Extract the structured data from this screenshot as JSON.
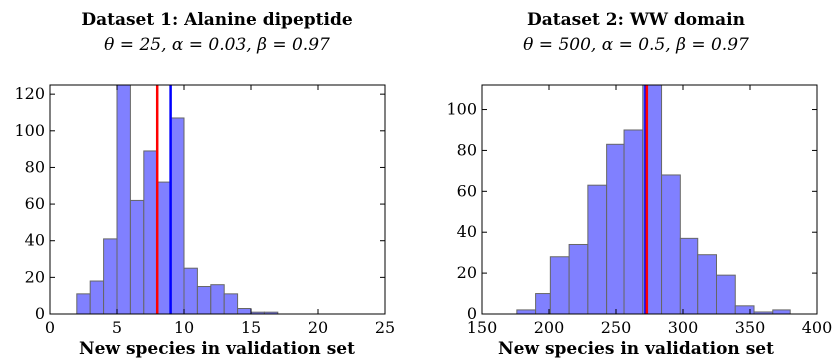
{
  "chart_data": [
    {
      "type": "bar",
      "title": "Dataset 1: Alanine dipeptide",
      "subtitle": "θ = 25, α = 0.03, β = 0.97",
      "xlabel": "New species in validation set",
      "ylabel": "",
      "xlim": [
        0,
        25
      ],
      "ylim": [
        0,
        125
      ],
      "xticks": [
        0,
        5,
        10,
        15,
        20,
        25
      ],
      "xtick_labels": [
        "0",
        "5",
        "10",
        "15",
        "20",
        "25"
      ],
      "yticks": [
        0,
        20,
        40,
        60,
        80,
        100,
        120
      ],
      "ytick_labels": [
        "0",
        "20",
        "40",
        "60",
        "80",
        "100",
        "120"
      ],
      "grid": false,
      "bin_edges": [
        2,
        3,
        4,
        5,
        6,
        7,
        8,
        9,
        10,
        11,
        12,
        13,
        14,
        15,
        16,
        17,
        18,
        19,
        20,
        21,
        22
      ],
      "values": [
        11,
        18,
        41,
        125,
        62,
        89,
        72,
        107,
        25,
        15,
        16,
        11,
        3,
        1,
        1,
        0,
        0,
        0,
        0,
        0
      ],
      "bar_color": "#8080ff",
      "edge_color": "#666666",
      "vlines": [
        {
          "x": 8,
          "color": "#ff0000"
        },
        {
          "x": 9,
          "color": "#0000ff"
        }
      ]
    },
    {
      "type": "bar",
      "title": "Dataset 2: WW domain",
      "subtitle": "θ = 500, α = 0.5, β = 0.97",
      "xlabel": "New species in validation set",
      "ylabel": "",
      "xlim": [
        150,
        400
      ],
      "ylim": [
        0,
        112
      ],
      "xticks": [
        150,
        200,
        250,
        300,
        350,
        400
      ],
      "xtick_labels": [
        "150",
        "200",
        "250",
        "300",
        "350",
        "400"
      ],
      "yticks": [
        0,
        20,
        40,
        60,
        80,
        100
      ],
      "ytick_labels": [
        "0",
        "20",
        "40",
        "60",
        "80",
        "100"
      ],
      "grid": false,
      "bin_edges": [
        176,
        190,
        201,
        215,
        229,
        243,
        256,
        270,
        284,
        298,
        311,
        325,
        339,
        353,
        367,
        380,
        394
      ],
      "values": [
        2,
        10,
        28,
        34,
        63,
        83,
        90,
        112,
        68,
        37,
        29,
        19,
        4,
        1,
        2,
        0
      ],
      "bar_color": "#8080ff",
      "edge_color": "#666666",
      "vlines": [
        {
          "x": 272,
          "color": "#0000ff"
        },
        {
          "x": 273,
          "color": "#ff0000"
        }
      ]
    }
  ]
}
